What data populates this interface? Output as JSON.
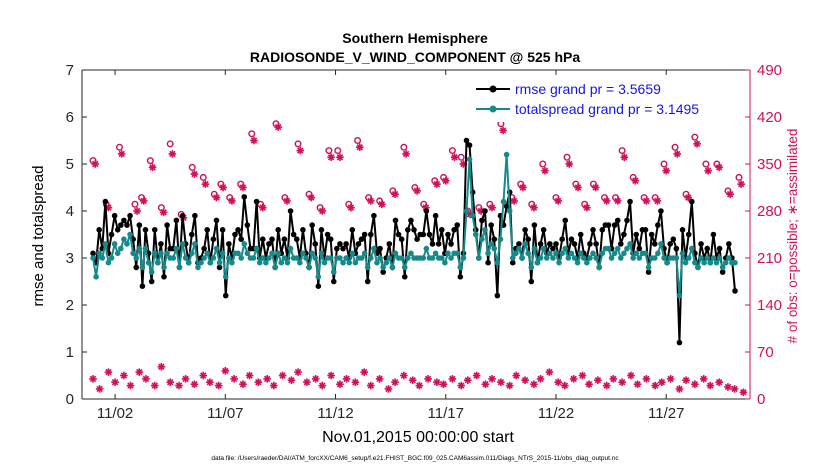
{
  "chart_data": {
    "type": "line",
    "title_line1": "Southern Hemisphere",
    "title_line2": "RADIOSONDE_V_WIND_COMPONENT @ 525 hPa",
    "xlabel": "Nov.01,2015 00:00:00 start",
    "ylabel_left": "rmse and totalspread",
    "ylabel_right": "# of obs: o=possible; ∗=assimilated",
    "xlim": [
      0.5,
      30.8
    ],
    "ylim_left": [
      0,
      7
    ],
    "ylim_right": [
      0,
      490
    ],
    "x_ticks": [
      2,
      7,
      12,
      17,
      22,
      27
    ],
    "x_tick_labels": [
      "11/02",
      "11/07",
      "11/12",
      "11/17",
      "11/22",
      "11/27"
    ],
    "y_ticks_left": [
      0,
      1,
      2,
      3,
      4,
      5,
      6,
      7
    ],
    "y_ticks_right": [
      0,
      70,
      140,
      210,
      280,
      350,
      420,
      490
    ],
    "series": [
      {
        "name": "rmse grand pr = 3.5659",
        "color": "#000000",
        "values": [
          3.1,
          2.9,
          3.6,
          3.2,
          4.2,
          3.1,
          3.5,
          3.9,
          3.6,
          3.7,
          3.8,
          3.7,
          3.9,
          3.4,
          2.8,
          3.7,
          2.4,
          3.6,
          3.1,
          2.5,
          3.6,
          2.9,
          3.3,
          2.6,
          3.7,
          3.2,
          3.2,
          3.8,
          2.8,
          3.9,
          3.3,
          2.9,
          3.5,
          3.9,
          2.9,
          3.0,
          3.2,
          3.6,
          2.9,
          3.4,
          3.8,
          2.8,
          3.6,
          2.2,
          3.3,
          3.0,
          3.5,
          3.6,
          3.4,
          4.3,
          3.7,
          3.2,
          3.2,
          4.2,
          3.0,
          3.4,
          3.0,
          3.3,
          3.4,
          2.8,
          3.6,
          3.1,
          3.4,
          3.0,
          4.0,
          3.5,
          3.4,
          3.0,
          3.6,
          3.1,
          2.8,
          3.7,
          3.3,
          2.4,
          3.6,
          3.0,
          3.5,
          3.4,
          2.5,
          3.2,
          3.3,
          3.2,
          3.3,
          3.0,
          3.6,
          3.1,
          3.3,
          3.4,
          3.5,
          2.5,
          3.5,
          3.9,
          3.1,
          3.2,
          2.7,
          3.0,
          3.3,
          2.8,
          3.8,
          3.5,
          3.4,
          2.6,
          3.6,
          3.8,
          3.6,
          3.4,
          3.5,
          3.5,
          4.0,
          3.5,
          3.3,
          3.9,
          3.3,
          3.6,
          3.1,
          3.5,
          3.3,
          3.6,
          3.7,
          2.6,
          3.1,
          5.5,
          5.4,
          4.4,
          3.6,
          3.0,
          3.8,
          4.0,
          2.9,
          3.7,
          3.4,
          2.2,
          3.9,
          3.7,
          4.1,
          4.4,
          2.9,
          3.2,
          3.3,
          3.0,
          3.6,
          3.4,
          2.5,
          3.7,
          2.9,
          3.3,
          3.6,
          3.1,
          3.3,
          3.2,
          3.3,
          3.0,
          3.4,
          3.8,
          3.1,
          3.4,
          3.3,
          3.0,
          3.5,
          3.1,
          3.0,
          3.3,
          3.6,
          3.3,
          2.8,
          3.6,
          3.7,
          3.7,
          3.2,
          3.7,
          3.8,
          3.3,
          3.5,
          3.8,
          4.2,
          3.1,
          3.5,
          3.2,
          3.6,
          3.6,
          2.7,
          3.5,
          3.3,
          3.7,
          4.0,
          3.2,
          2.9,
          3.3,
          3.4,
          3.2,
          1.2,
          3.6,
          3.0,
          3.5,
          4.2,
          3.1,
          2.8,
          3.3,
          3.0,
          3.2,
          2.9,
          3.5,
          3.0,
          3.2,
          2.7,
          3.0,
          3.3,
          3.0,
          2.3
        ],
        "first_x": 1.0,
        "step_x": 0.14
      },
      {
        "name": "totalspread grand pr = 3.1495",
        "color": "#168a8a",
        "values": [
          3.0,
          2.6,
          3.1,
          3.0,
          3.3,
          2.9,
          3.0,
          3.3,
          3.1,
          3.2,
          3.4,
          3.3,
          3.5,
          3.1,
          3.0,
          3.2,
          2.8,
          3.2,
          2.9,
          2.7,
          3.1,
          2.9,
          3.1,
          2.8,
          3.1,
          3.0,
          3.0,
          3.2,
          2.8,
          3.3,
          3.0,
          2.9,
          3.1,
          3.3,
          2.8,
          2.9,
          3.0,
          3.1,
          2.9,
          3.0,
          3.2,
          2.9,
          3.1,
          2.6,
          3.0,
          2.9,
          3.1,
          3.1,
          3.0,
          3.3,
          3.1,
          3.0,
          3.0,
          3.2,
          2.9,
          3.0,
          2.9,
          3.0,
          3.1,
          2.8,
          3.1,
          2.9,
          3.0,
          2.9,
          3.2,
          3.0,
          3.0,
          2.9,
          3.1,
          3.0,
          2.8,
          3.1,
          3.0,
          2.6,
          3.1,
          2.9,
          3.0,
          3.0,
          2.7,
          3.0,
          3.0,
          2.9,
          3.0,
          2.9,
          3.1,
          2.9,
          3.0,
          3.0,
          3.1,
          2.8,
          3.0,
          3.2,
          2.9,
          3.0,
          2.8,
          2.9,
          3.0,
          2.8,
          3.1,
          3.0,
          3.0,
          2.8,
          3.0,
          3.1,
          3.0,
          3.0,
          3.0,
          3.0,
          3.2,
          3.0,
          3.0,
          3.1,
          3.0,
          3.0,
          2.9,
          3.1,
          3.0,
          3.1,
          3.1,
          2.8,
          3.0,
          4.0,
          5.1,
          3.9,
          3.5,
          3.0,
          3.4,
          3.6,
          3.1,
          3.3,
          3.2,
          2.9,
          3.4,
          4.2,
          5.2,
          4.0,
          3.0,
          3.1,
          3.2,
          3.0,
          3.3,
          3.1,
          2.8,
          3.2,
          2.9,
          3.0,
          3.2,
          3.0,
          3.1,
          3.0,
          3.1,
          2.9,
          3.1,
          3.2,
          3.0,
          3.1,
          3.0,
          2.9,
          3.1,
          3.0,
          2.9,
          3.0,
          3.1,
          3.0,
          2.8,
          3.1,
          3.2,
          3.2,
          3.0,
          3.1,
          3.2,
          3.0,
          3.1,
          3.2,
          3.3,
          3.0,
          3.1,
          3.0,
          3.1,
          3.1,
          2.8,
          3.0,
          3.0,
          3.1,
          3.3,
          3.0,
          2.9,
          3.0,
          3.0,
          3.0,
          2.2,
          3.1,
          2.9,
          3.0,
          3.2,
          2.9,
          2.8,
          3.0,
          2.9,
          3.0,
          2.9,
          3.0,
          2.9,
          3.0,
          2.8,
          2.9,
          3.0,
          2.9,
          2.9
        ],
        "first_x": 1.0,
        "step_x": 0.14
      }
    ],
    "obs_possible": {
      "marker": "o",
      "color": "#d0105a",
      "x": [
        1.0,
        1.6,
        2.2,
        2.9,
        3.2,
        3.6,
        4.1,
        4.5,
        5.0,
        5.5,
        6.0,
        6.5,
        6.8,
        7.2,
        7.7,
        8.2,
        8.6,
        9.3,
        9.7,
        10.3,
        10.8,
        11.3,
        11.7,
        12.1,
        12.6,
        13.0,
        13.5,
        14.0,
        14.6,
        15.1,
        15.6,
        16.0,
        16.5,
        16.9,
        17.3,
        17.7,
        18.0,
        18.5,
        19.0,
        19.5,
        20.0,
        20.4,
        20.9,
        21.4,
        22.0,
        22.5,
        22.9,
        23.3,
        23.7,
        24.2,
        24.7,
        25.0,
        25.5,
        26.0,
        26.5,
        26.9,
        27.4,
        27.9,
        28.3,
        28.8,
        29.3,
        29.8,
        30.3
      ],
      "y": [
        355,
        290,
        375,
        290,
        300,
        355,
        285,
        380,
        275,
        345,
        330,
        305,
        320,
        300,
        320,
        395,
        290,
        410,
        300,
        380,
        305,
        285,
        370,
        370,
        290,
        385,
        300,
        295,
        310,
        375,
        315,
        290,
        325,
        330,
        370,
        360,
        280,
        285,
        290,
        410,
        300,
        320,
        290,
        350,
        300,
        360,
        320,
        290,
        320,
        300,
        300,
        370,
        330,
        300,
        300,
        350,
        375,
        305,
        390,
        350,
        350,
        310,
        330
      ]
    },
    "obs_assimilated": {
      "marker": "*",
      "color": "#d0105a",
      "x": [
        1.1,
        1.7,
        2.3,
        3.0,
        3.3,
        3.7,
        4.2,
        4.6,
        5.1,
        5.6,
        6.1,
        6.6,
        6.9,
        7.3,
        7.8,
        8.3,
        8.7,
        9.4,
        9.8,
        10.4,
        10.9,
        11.4,
        11.8,
        12.2,
        12.7,
        13.1,
        13.6,
        14.1,
        14.7,
        15.2,
        15.7,
        16.1,
        16.6,
        17.0,
        17.4,
        17.8,
        18.1,
        18.6,
        19.1,
        19.6,
        20.1,
        20.5,
        21.0,
        21.5,
        22.1,
        22.6,
        23.0,
        23.4,
        23.8,
        24.3,
        24.8,
        25.1,
        25.6,
        26.1,
        26.6,
        27.0,
        27.5,
        28.0,
        28.4,
        28.9,
        29.4,
        29.9,
        30.4
      ],
      "y": [
        350,
        285,
        365,
        280,
        295,
        345,
        278,
        365,
        270,
        335,
        320,
        300,
        315,
        295,
        315,
        385,
        285,
        405,
        295,
        370,
        300,
        280,
        360,
        360,
        285,
        375,
        295,
        290,
        305,
        365,
        310,
        285,
        320,
        325,
        360,
        350,
        275,
        280,
        285,
        400,
        295,
        315,
        285,
        340,
        295,
        350,
        315,
        285,
        315,
        295,
        295,
        360,
        325,
        295,
        295,
        340,
        365,
        300,
        380,
        340,
        345,
        305,
        320
      ]
    },
    "obs_assimilated_low": {
      "marker": "*",
      "color": "#d0105a",
      "x": [
        1.0,
        1.3,
        1.7,
        2.0,
        2.4,
        2.7,
        3.1,
        3.4,
        3.8,
        4.1,
        4.5,
        4.9,
        5.2,
        5.6,
        6.0,
        6.3,
        6.7,
        7.0,
        7.4,
        7.8,
        8.1,
        8.5,
        8.9,
        9.2,
        9.6,
        10.0,
        10.3,
        10.7,
        11.1,
        11.4,
        11.8,
        12.2,
        12.5,
        12.9,
        13.3,
        13.6,
        14.0,
        14.4,
        14.7,
        15.1,
        15.5,
        15.8,
        16.2,
        16.6,
        16.9,
        17.3,
        17.7,
        18.0,
        18.4,
        18.8,
        19.1,
        19.5,
        19.9,
        20.2,
        20.6,
        21.0,
        21.3,
        21.7,
        22.1,
        22.4,
        22.8,
        23.2,
        23.5,
        23.9,
        24.3,
        24.6,
        25.0,
        25.4,
        25.7,
        26.1,
        26.5,
        26.8,
        27.2,
        27.6,
        27.9,
        28.3,
        28.7,
        29.0,
        29.4,
        29.8,
        30.1,
        30.5
      ],
      "y": [
        30,
        15,
        40,
        25,
        35,
        20,
        40,
        30,
        20,
        48,
        25,
        20,
        30,
        22,
        35,
        25,
        20,
        42,
        30,
        22,
        35,
        25,
        30,
        20,
        35,
        28,
        40,
        25,
        30,
        20,
        35,
        22,
        30,
        25,
        40,
        20,
        30,
        15,
        25,
        35,
        28,
        20,
        30,
        25,
        22,
        30,
        20,
        28,
        35,
        22,
        30,
        25,
        20,
        35,
        28,
        22,
        30,
        40,
        25,
        20,
        30,
        35,
        22,
        28,
        20,
        30,
        25,
        35,
        22,
        30,
        20,
        25,
        30,
        15,
        28,
        22,
        30,
        20,
        25,
        18,
        15,
        10
      ]
    },
    "footnote": "data file: /Users/raeder/DAI/ATM_forcXX/CAM6_setup/f.e21.FHIST_BGC.f09_025.CAM6assim.011/Diags_NTrS_2015-11/obs_diag_output.nc"
  },
  "colors": {
    "rmse": "#000000",
    "spread": "#168a8a",
    "obs": "#d0105a",
    "legend_text": "#1515e0",
    "axis": "#262626"
  }
}
